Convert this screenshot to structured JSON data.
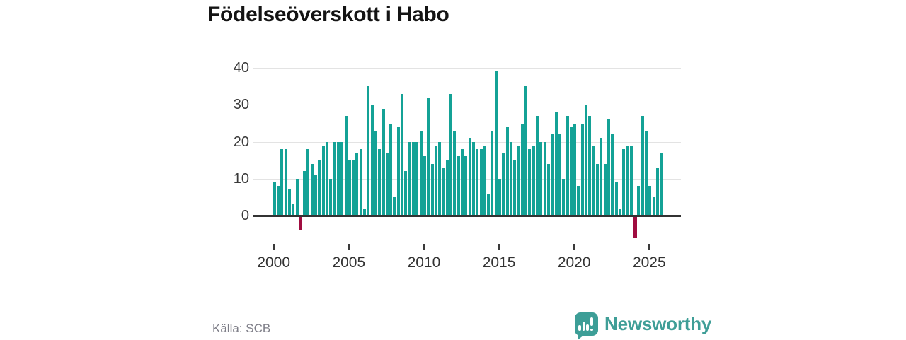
{
  "title": "Födelseöverskott i Habo",
  "source": "Källa: SCB",
  "logo": {
    "text": "Newsworthy",
    "icon": "newsworthy-speech-bubble-chart-icon",
    "color": "#3f9e97"
  },
  "colors": {
    "bar_positive": "#14a296",
    "bar_negative": "#a00d40",
    "grid": "#e3e3e3",
    "axis": "#333333"
  },
  "chart_data": {
    "type": "bar",
    "title": "Födelseöverskott i Habo",
    "xlabel": "",
    "ylabel": "",
    "frequency": "quarterly",
    "start_period": "2000 Q1",
    "end_period": "2025 Q4",
    "yticks": [
      0,
      10,
      20,
      30,
      40
    ],
    "ylim": [
      -8,
      42
    ],
    "xticks": [
      2000,
      2005,
      2010,
      2015,
      2020,
      2025
    ],
    "grid": true,
    "legend": false,
    "values": [
      9,
      8,
      18,
      18,
      7,
      3,
      10,
      -4,
      12,
      18,
      14,
      11,
      15,
      19,
      20,
      10,
      20,
      20,
      20,
      27,
      15,
      15,
      17,
      18,
      2,
      35,
      30,
      23,
      18,
      29,
      17,
      25,
      5,
      24,
      33,
      12,
      20,
      20,
      20,
      23,
      16,
      32,
      14,
      19,
      20,
      13,
      15,
      33,
      23,
      16,
      18,
      16,
      21,
      20,
      18,
      18,
      19,
      6,
      23,
      39,
      10,
      17,
      24,
      20,
      15,
      19,
      25,
      35,
      18,
      19,
      27,
      20,
      20,
      14,
      22,
      28,
      22,
      10,
      27,
      24,
      25,
      8,
      25,
      30,
      27,
      19,
      14,
      21,
      14,
      26,
      22,
      9,
      2,
      18,
      19,
      19,
      -6,
      8,
      27,
      23,
      8,
      5,
      13,
      17
    ]
  }
}
